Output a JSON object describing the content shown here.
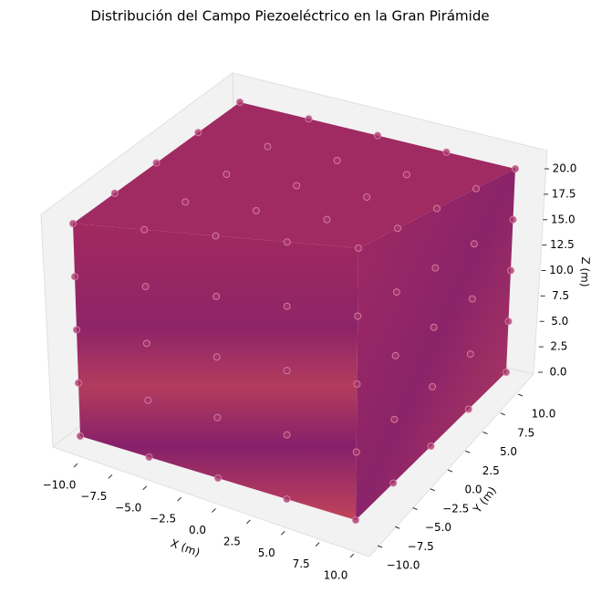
{
  "chart_data": {
    "type": "scatter3d",
    "title": "Distribución del Campo Piezoeléctrico en la Gran Pirámide",
    "x_label": "X (m)",
    "y_label": "Y (m)",
    "z_label": "Z (m)",
    "color": "#a8346a",
    "x": [
      -10,
      -10,
      -10,
      -10,
      -10,
      -5,
      -5,
      -5,
      -5,
      -5,
      0,
      0,
      0,
      0,
      0,
      5,
      5,
      5,
      5,
      5,
      10,
      10,
      10,
      10,
      10,
      -10,
      -10,
      -10,
      -10,
      -5,
      -5,
      -5,
      -5,
      0,
      0,
      0,
      0,
      5,
      5,
      5,
      5,
      10,
      10,
      10,
      10,
      10,
      10,
      10,
      10,
      10,
      10,
      10,
      10,
      10,
      10,
      10,
      10,
      10,
      10,
      10,
      10
    ],
    "y": [
      -10,
      -5,
      0,
      5,
      10,
      -10,
      -5,
      0,
      5,
      10,
      -10,
      -5,
      0,
      5,
      10,
      -10,
      -5,
      0,
      5,
      10,
      -10,
      -5,
      0,
      5,
      10,
      -10,
      -10,
      -10,
      -10,
      -10,
      -10,
      -10,
      -10,
      -10,
      -10,
      -10,
      -10,
      -10,
      -10,
      -10,
      -10,
      -10,
      -10,
      -10,
      -10,
      -5,
      -5,
      -5,
      -5,
      0,
      0,
      0,
      0,
      5,
      5,
      5,
      5,
      10,
      10,
      10,
      10
    ],
    "z": [
      20,
      20,
      20,
      20,
      20,
      20,
      20,
      20,
      20,
      20,
      20,
      20,
      20,
      20,
      20,
      20,
      20,
      20,
      20,
      20,
      20,
      20,
      20,
      20,
      20,
      0,
      5,
      10,
      15,
      0,
      5,
      10,
      15,
      0,
      5,
      10,
      15,
      0,
      5,
      10,
      15,
      0,
      5,
      10,
      15,
      0,
      5,
      10,
      15,
      0,
      5,
      10,
      15,
      0,
      5,
      10,
      15,
      0,
      5,
      10,
      15
    ],
    "xticks": [
      {
        "value": -10,
        "label": "−10.0"
      },
      {
        "value": -7.5,
        "label": "−7.5"
      },
      {
        "value": -5,
        "label": "−5.0"
      },
      {
        "value": -2.5,
        "label": "−2.5"
      },
      {
        "value": 0,
        "label": "0.0"
      },
      {
        "value": 2.5,
        "label": "2.5"
      },
      {
        "value": 5,
        "label": "5.0"
      },
      {
        "value": 7.5,
        "label": "7.5"
      },
      {
        "value": 10,
        "label": "10.0"
      }
    ],
    "yticks": [
      {
        "value": -10,
        "label": "−10.0"
      },
      {
        "value": -7.5,
        "label": "−7.5"
      },
      {
        "value": -5,
        "label": "−5.0"
      },
      {
        "value": -2.5,
        "label": "−2.5"
      },
      {
        "value": 0,
        "label": "0.0"
      },
      {
        "value": 2.5,
        "label": "2.5"
      },
      {
        "value": 5,
        "label": "5.0"
      },
      {
        "value": 7.5,
        "label": "7.5"
      },
      {
        "value": 10,
        "label": "10.0"
      }
    ],
    "zticks": [
      {
        "value": 0,
        "label": "0.0"
      },
      {
        "value": 2.5,
        "label": "2.5"
      },
      {
        "value": 5,
        "label": "5.0"
      },
      {
        "value": 7.5,
        "label": "7.5"
      },
      {
        "value": 10,
        "label": "10.0"
      },
      {
        "value": 12.5,
        "label": "12.5"
      },
      {
        "value": 15,
        "label": "15.0"
      },
      {
        "value": 17.5,
        "label": "17.5"
      },
      {
        "value": 20,
        "label": "20.0"
      }
    ]
  }
}
